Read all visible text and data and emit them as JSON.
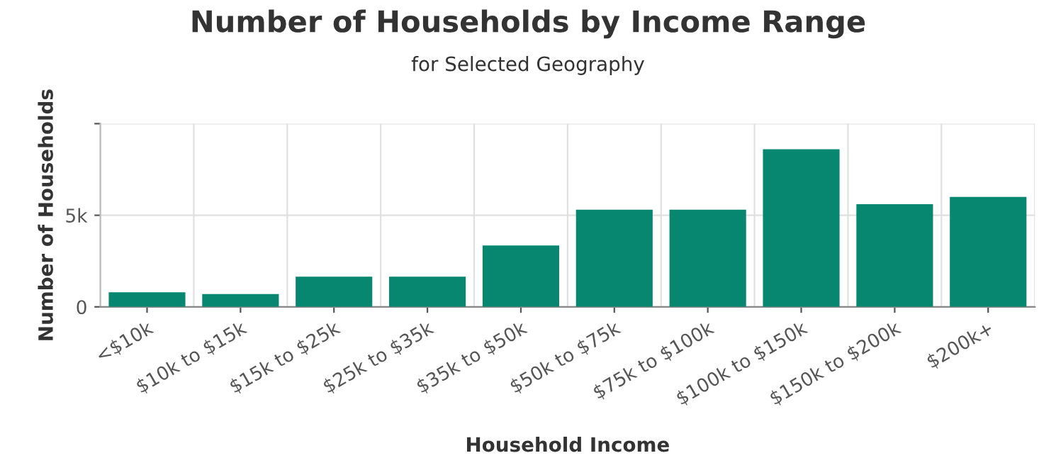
{
  "chart_data": {
    "type": "bar",
    "title": "Number of Households by Income Range",
    "subtitle": "for Selected Geography",
    "xlabel": "Household Income",
    "ylabel": "Number of Households",
    "categories": [
      "<$10k",
      "$10k to $15k",
      "$15k to $25k",
      "$25k to $35k",
      "$35k to $50k",
      "$50k to $75k",
      "$75k to $100k",
      "$100k to $150k",
      "$150k to $200k",
      "$200k+"
    ],
    "values": [
      800,
      700,
      1650,
      1650,
      3350,
      5300,
      5300,
      8600,
      5600,
      6000
    ],
    "color": "#078770",
    "ylim": [
      0,
      10000
    ],
    "yticks": [
      0,
      {
        "value": 5000,
        "label": "5k"
      },
      {
        "value": 10000,
        "label": null
      }
    ],
    "grid": true,
    "legend": false
  }
}
